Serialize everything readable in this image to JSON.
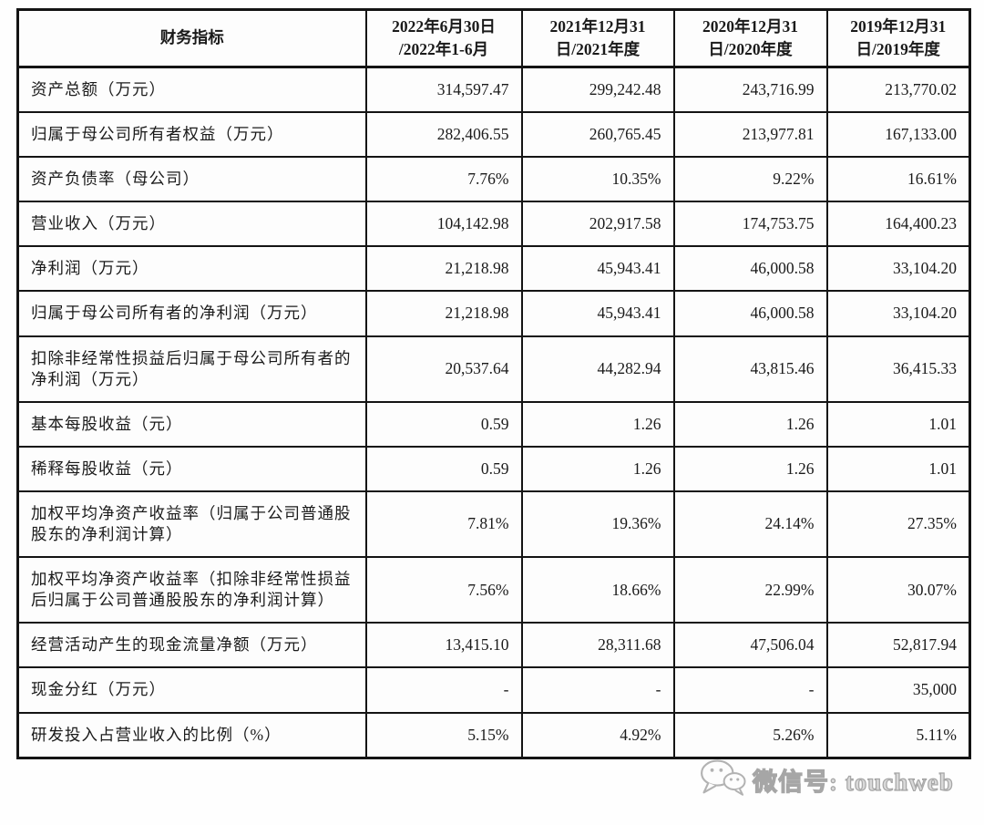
{
  "table": {
    "columns": [
      "财务指标",
      "2022年6月30日\n/2022年1-6月",
      "2021年12月31\n日/2021年度",
      "2020年12月31\n日/2020年度",
      "2019年12月31\n日/2019年度"
    ],
    "rows": [
      {
        "label": "资产总额（万元）",
        "values": [
          "314,597.47",
          "299,242.48",
          "243,716.99",
          "213,770.02"
        ]
      },
      {
        "label": "归属于母公司所有者权益（万元）",
        "values": [
          "282,406.55",
          "260,765.45",
          "213,977.81",
          "167,133.00"
        ]
      },
      {
        "label": "资产负债率（母公司）",
        "values": [
          "7.76%",
          "10.35%",
          "9.22%",
          "16.61%"
        ]
      },
      {
        "label": "营业收入（万元）",
        "values": [
          "104,142.98",
          "202,917.58",
          "174,753.75",
          "164,400.23"
        ]
      },
      {
        "label": "净利润（万元）",
        "values": [
          "21,218.98",
          "45,943.41",
          "46,000.58",
          "33,104.20"
        ]
      },
      {
        "label": "归属于母公司所有者的净利润（万元）",
        "values": [
          "21,218.98",
          "45,943.41",
          "46,000.58",
          "33,104.20"
        ]
      },
      {
        "label": "扣除非经常性损益后归属于母公司所有者的净利润（万元）",
        "values": [
          "20,537.64",
          "44,282.94",
          "43,815.46",
          "36,415.33"
        ]
      },
      {
        "label": "基本每股收益（元）",
        "values": [
          "0.59",
          "1.26",
          "1.26",
          "1.01"
        ]
      },
      {
        "label": "稀释每股收益（元）",
        "values": [
          "0.59",
          "1.26",
          "1.26",
          "1.01"
        ]
      },
      {
        "label": "加权平均净资产收益率（归属于公司普通股股东的净利润计算）",
        "values": [
          "7.81%",
          "19.36%",
          "24.14%",
          "27.35%"
        ]
      },
      {
        "label": "加权平均净资产收益率（扣除非经常性损益后归属于公司普通股股东的净利润计算）",
        "values": [
          "7.56%",
          "18.66%",
          "22.99%",
          "30.07%"
        ]
      },
      {
        "label": "经营活动产生的现金流量净额（万元）",
        "values": [
          "13,415.10",
          "28,311.68",
          "47,506.04",
          "52,817.94"
        ]
      },
      {
        "label": "现金分红（万元）",
        "values": [
          "-",
          "-",
          "-",
          "35,000"
        ]
      },
      {
        "label": "研发投入占营业收入的比例（%）",
        "values": [
          "5.15%",
          "4.92%",
          "5.26%",
          "5.11%"
        ]
      }
    ]
  },
  "watermark": {
    "icon": "wechat-icon",
    "text": "微信号: touchweb"
  }
}
